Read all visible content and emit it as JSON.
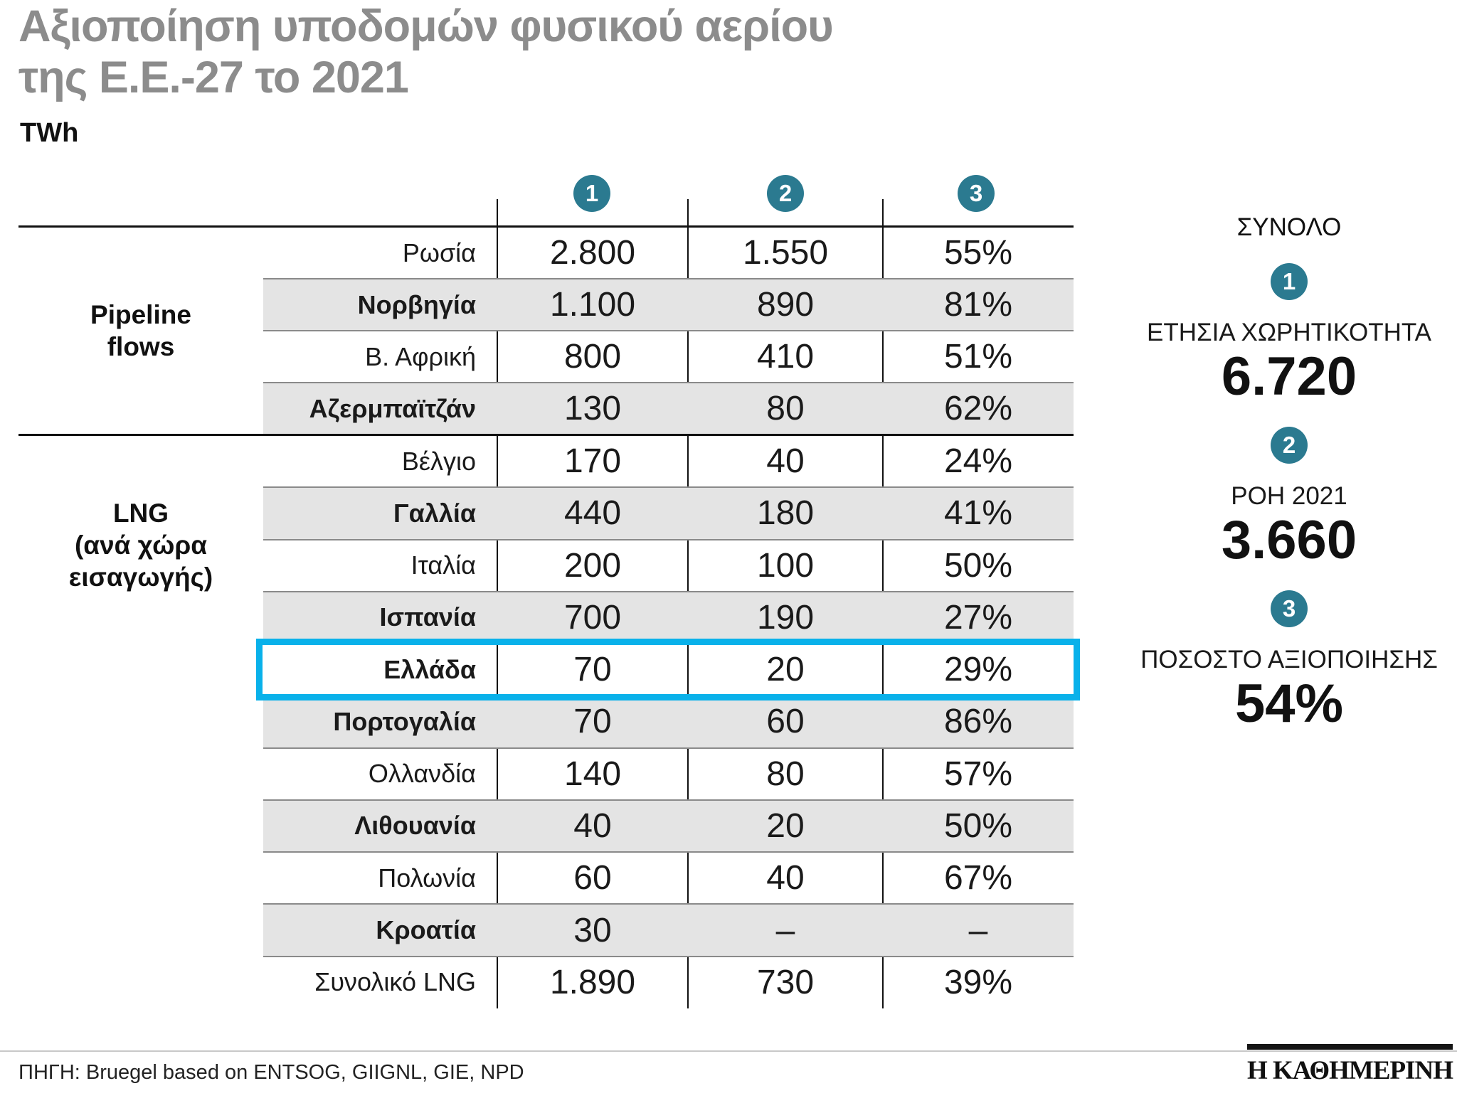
{
  "title": {
    "line1": "Αξιοποίηση υποδομών φυσικού αερίου",
    "line2": "της Ε.Ε.-27 το 2021"
  },
  "unit_label": "TWh",
  "chart_data": {
    "type": "table",
    "title": "Αξιοποίηση υποδομών φυσικού αερίου της Ε.Ε.-27 το 2021",
    "unit": "TWh",
    "columns": [
      {
        "num": "1",
        "name": "ΕΤΗΣΙΑ ΧΩΡΗΤΙΚΟΤΗΤΑ"
      },
      {
        "num": "2",
        "name": "ΡΟΗ 2021"
      },
      {
        "num": "3",
        "name": "ΠΟΣΟΣΤΟ ΑΞΙΟΠΟΙΗΣΗΣ"
      }
    ],
    "sections": [
      {
        "group": "Pipeline flows",
        "group_lines": [
          "Pipeline",
          "flows"
        ],
        "rows": [
          {
            "country": "Ρωσία",
            "capacity": "2.800",
            "flow_2021": "1.550",
            "utilization": "55%"
          },
          {
            "country": "Νορβηγία",
            "capacity": "1.100",
            "flow_2021": "890",
            "utilization": "81%"
          },
          {
            "country": "Β. Αφρική",
            "capacity": "800",
            "flow_2021": "410",
            "utilization": "51%"
          },
          {
            "country": "Αζερμπαϊτζάν",
            "capacity": "130",
            "flow_2021": "80",
            "utilization": "62%"
          }
        ]
      },
      {
        "group": "LNG (ανά χώρα εισαγωγής)",
        "group_lines": [
          "LNG",
          "(ανά χώρα",
          "εισαγωγής)"
        ],
        "rows": [
          {
            "country": "Βέλγιο",
            "capacity": "170",
            "flow_2021": "40",
            "utilization": "24%"
          },
          {
            "country": "Γαλλία",
            "capacity": "440",
            "flow_2021": "180",
            "utilization": "41%"
          },
          {
            "country": "Ιταλία",
            "capacity": "200",
            "flow_2021": "100",
            "utilization": "50%"
          },
          {
            "country": "Ισπανία",
            "capacity": "700",
            "flow_2021": "190",
            "utilization": "27%"
          },
          {
            "country": "Ελλάδα",
            "capacity": "70",
            "flow_2021": "20",
            "utilization": "29%",
            "highlighted": true
          },
          {
            "country": "Πορτογαλία",
            "capacity": "70",
            "flow_2021": "60",
            "utilization": "86%"
          },
          {
            "country": "Ολλανδία",
            "capacity": "140",
            "flow_2021": "80",
            "utilization": "57%"
          },
          {
            "country": "Λιθουανία",
            "capacity": "40",
            "flow_2021": "20",
            "utilization": "50%"
          },
          {
            "country": "Πολωνία",
            "capacity": "60",
            "flow_2021": "40",
            "utilization": "67%"
          },
          {
            "country": "Κροατία",
            "capacity": "30",
            "flow_2021": "–",
            "utilization": "–"
          },
          {
            "country": "Συνολικό LNG",
            "capacity": "1.890",
            "flow_2021": "730",
            "utilization": "39%"
          }
        ]
      }
    ],
    "totals": {
      "heading": "ΣΥΝΟΛΟ",
      "items": [
        {
          "num": "1",
          "label": "ΕΤΗΣΙΑ ΧΩΡΗΤΙΚΟΤΗΤΑ",
          "value": "6.720"
        },
        {
          "num": "2",
          "label": "ΡΟΗ 2021",
          "value": "3.660"
        },
        {
          "num": "3",
          "label": "ΠΟΣΟΣΤΟ ΑΞΙΟΠΟΙΗΣΗΣ",
          "value": "54%"
        }
      ]
    }
  },
  "footer": {
    "source": "ΠΗΓΗ: Bruegel based on ENTSOG, GIIGNL, GIE, NPD",
    "brand": "Η ΚΑΘΗΜΕΡΙΝΗ"
  },
  "colors": {
    "circle_teal": "#2b7a90",
    "highlight_cyan": "#09b1ea",
    "row_shade": "#e4e4e4",
    "title_gray": "#8c8c8c"
  }
}
